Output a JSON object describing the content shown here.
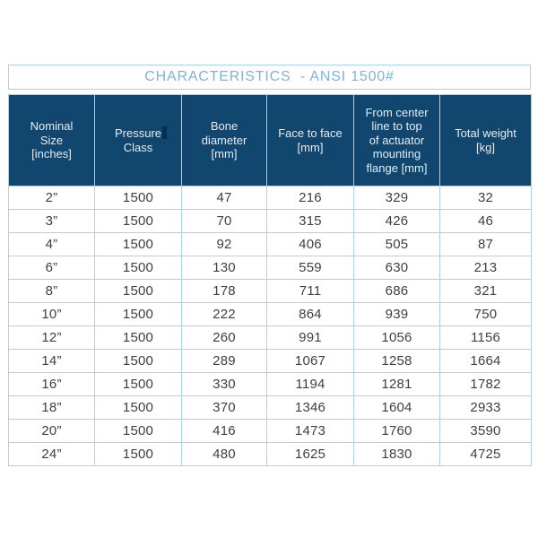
{
  "title_bar": {
    "title": "CHARACTERISTICS  - ANSI 1500#"
  },
  "colors": {
    "header_background": "#11476f",
    "header_text": "#e3ecf3",
    "grid_line": "#aecfe6",
    "title_text": "#7fb2d7",
    "data_text": "#3f3f3f",
    "cursor_artifact": "#0a2c49",
    "page_background": "#ffffff"
  },
  "chart_data": {
    "type": "table",
    "title": "CHARACTERISTICS  - ANSI 1500#",
    "columns": [
      "Nominal\nSize\n[inches]",
      "Pressure\nClass",
      "Bone\ndiameter\n[mm]",
      "Face to face\n[mm]",
      "From center\nline to top\nof actuator\nmounting\nflange [mm]",
      "Total weight\n[kg]"
    ],
    "rows": [
      [
        "2”",
        "1500",
        "47",
        "216",
        "329",
        "32"
      ],
      [
        "3”",
        "1500",
        "70",
        "315",
        "426",
        "46"
      ],
      [
        "4”",
        "1500",
        "92",
        "406",
        "505",
        "87"
      ],
      [
        "6”",
        "1500",
        "130",
        "559",
        "630",
        "213"
      ],
      [
        "8”",
        "1500",
        "178",
        "711",
        "686",
        "321"
      ],
      [
        "10”",
        "1500",
        "222",
        "864",
        "939",
        "750"
      ],
      [
        "12”",
        "1500",
        "260",
        "991",
        "1056",
        "1156"
      ],
      [
        "14”",
        "1500",
        "289",
        "1067",
        "1258",
        "1664"
      ],
      [
        "16”",
        "1500",
        "330",
        "1194",
        "1281",
        "1782"
      ],
      [
        "18”",
        "1500",
        "370",
        "1346",
        "1604",
        "2933"
      ],
      [
        "20”",
        "1500",
        "416",
        "1473",
        "1760",
        "3590"
      ],
      [
        "24”",
        "1500",
        "480",
        "1625",
        "1830",
        "4725"
      ]
    ]
  }
}
